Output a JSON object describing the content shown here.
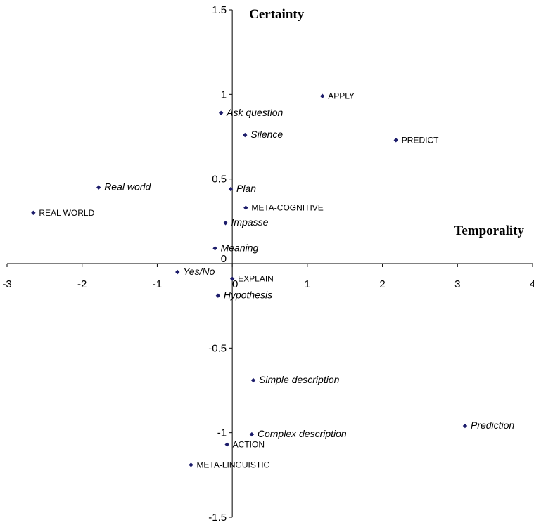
{
  "chart_data": {
    "type": "scatter",
    "title": "",
    "xlabel": "Temporality",
    "ylabel": "Certainty",
    "xlim": [
      -3,
      4
    ],
    "ylim": [
      -1.5,
      1.5
    ],
    "x_ticks": [
      "-3",
      "-2",
      "-1",
      "0",
      "1",
      "2",
      "3",
      "4"
    ],
    "y_ticks": [
      "1.5",
      "1",
      "0.5",
      "0",
      "-0.5",
      "-1",
      "-1.5"
    ],
    "grid": false,
    "legend": "none",
    "marker_color": "#1c1c6b",
    "points": [
      {
        "label": "APPLY",
        "x": 1.2,
        "y": 0.99,
        "style": "caps"
      },
      {
        "label": "Ask question",
        "x": -0.15,
        "y": 0.89,
        "style": "italic"
      },
      {
        "label": "Silence",
        "x": 0.17,
        "y": 0.76,
        "style": "italic"
      },
      {
        "label": "PREDICT",
        "x": 2.18,
        "y": 0.73,
        "style": "caps"
      },
      {
        "label": "Real world",
        "x": -1.78,
        "y": 0.45,
        "style": "italic"
      },
      {
        "label": "Plan",
        "x": -0.02,
        "y": 0.44,
        "style": "italic"
      },
      {
        "label": "META-COGNITIVE",
        "x": 0.18,
        "y": 0.33,
        "style": "caps"
      },
      {
        "label": "REAL WORLD",
        "x": -2.65,
        "y": 0.3,
        "style": "caps"
      },
      {
        "label": "Impasse",
        "x": -0.09,
        "y": 0.24,
        "style": "italic"
      },
      {
        "label": "Meaning",
        "x": -0.23,
        "y": 0.09,
        "style": "italic"
      },
      {
        "label": "Yes/No",
        "x": -0.73,
        "y": -0.05,
        "style": "italic"
      },
      {
        "label": "EXPLAIN",
        "x": 0.0,
        "y": -0.09,
        "style": "caps"
      },
      {
        "label": "Hypothesis",
        "x": -0.19,
        "y": -0.19,
        "style": "italic"
      },
      {
        "label": "Simple description",
        "x": 0.28,
        "y": -0.69,
        "style": "italic"
      },
      {
        "label": "Prediction",
        "x": 3.1,
        "y": -0.96,
        "style": "italic"
      },
      {
        "label": "Complex description",
        "x": 0.26,
        "y": -1.01,
        "style": "italic"
      },
      {
        "label": "ACTION",
        "x": -0.07,
        "y": -1.07,
        "style": "caps"
      },
      {
        "label": "META-LINGUISTIC",
        "x": -0.55,
        "y": -1.19,
        "style": "caps"
      }
    ]
  }
}
